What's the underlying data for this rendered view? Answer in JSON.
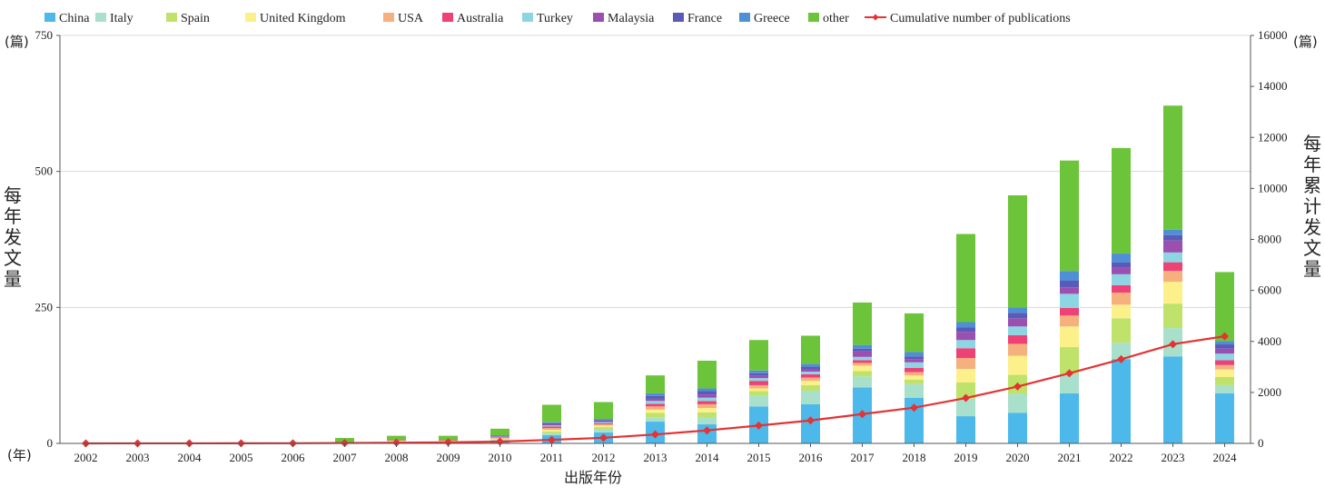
{
  "chart_data": {
    "type": "bar",
    "subtype": "stacked bar with cumulative line (dual axis)",
    "categories": [
      "2002",
      "2003",
      "2004",
      "2005",
      "2006",
      "2007",
      "2008",
      "2009",
      "2010",
      "2011",
      "2012",
      "2013",
      "2014",
      "2015",
      "2016",
      "2017",
      "2018",
      "2019",
      "2020",
      "2021",
      "2022",
      "2023",
      "2024"
    ],
    "xlabel": "出版年份",
    "x_unit": "(年)",
    "ylabel_left": "每年发文量",
    "y_unit_left": "(篇)",
    "ylim_left": [
      0,
      750
    ],
    "yticks_left": [
      0,
      250,
      500,
      750
    ],
    "ylabel_right": "每年累计发文量",
    "y_unit_right": "(篇)",
    "ylim_right": [
      0,
      16000
    ],
    "yticks_right": [
      0,
      2000,
      4000,
      6000,
      8000,
      10000,
      12000,
      14000,
      16000
    ],
    "legend_position": "top",
    "series": [
      {
        "name": "China",
        "color": "#4db8ea",
        "values": [
          0,
          0,
          0,
          0,
          0,
          1,
          2,
          2,
          5,
          15,
          20,
          40,
          35,
          68,
          72,
          103,
          84,
          50,
          56,
          92,
          155,
          160,
          92
        ]
      },
      {
        "name": "Italy",
        "color": "#a8e0cc",
        "values": [
          0,
          0,
          0,
          0,
          0,
          0,
          1,
          1,
          2,
          4,
          6,
          8,
          12,
          20,
          25,
          20,
          25,
          32,
          35,
          35,
          30,
          52,
          15
        ]
      },
      {
        "name": "Spain",
        "color": "#bfe26a",
        "values": [
          0,
          0,
          0,
          0,
          0,
          0,
          1,
          1,
          1,
          3,
          4,
          8,
          10,
          8,
          10,
          10,
          8,
          30,
          35,
          50,
          45,
          45,
          15
        ]
      },
      {
        "name": "United Kingdom",
        "color": "#fbf08a",
        "values": [
          0,
          0,
          0,
          0,
          0,
          0,
          1,
          1,
          1,
          3,
          3,
          6,
          8,
          5,
          8,
          10,
          8,
          25,
          35,
          38,
          25,
          40,
          14
        ]
      },
      {
        "name": "USA",
        "color": "#f5b07e",
        "values": [
          0,
          0,
          0,
          0,
          0,
          0,
          0,
          0,
          1,
          3,
          2,
          6,
          7,
          6,
          6,
          5,
          6,
          20,
          22,
          20,
          22,
          20,
          8
        ]
      },
      {
        "name": "Australia",
        "color": "#ee4277",
        "values": [
          0,
          0,
          0,
          0,
          0,
          0,
          1,
          1,
          1,
          3,
          2,
          5,
          6,
          8,
          6,
          5,
          8,
          18,
          16,
          14,
          14,
          16,
          9
        ]
      },
      {
        "name": "Turkey",
        "color": "#8cd6e4",
        "values": [
          0,
          0,
          0,
          0,
          0,
          0,
          0,
          0,
          1,
          2,
          2,
          5,
          6,
          5,
          5,
          6,
          10,
          15,
          16,
          26,
          20,
          18,
          12
        ]
      },
      {
        "name": "Malaysia",
        "color": "#9b50b0",
        "values": [
          0,
          0,
          0,
          0,
          0,
          0,
          0,
          0,
          1,
          2,
          2,
          4,
          6,
          5,
          5,
          10,
          6,
          15,
          15,
          12,
          12,
          22,
          9
        ]
      },
      {
        "name": "France",
        "color": "#5a5ab8",
        "values": [
          0,
          0,
          0,
          0,
          0,
          0,
          0,
          0,
          1,
          2,
          2,
          5,
          6,
          4,
          4,
          5,
          5,
          8,
          10,
          12,
          10,
          10,
          8
        ]
      },
      {
        "name": "Greece",
        "color": "#4f8fd6",
        "values": [
          0,
          0,
          0,
          0,
          0,
          0,
          0,
          0,
          1,
          2,
          2,
          5,
          5,
          5,
          5,
          7,
          8,
          10,
          10,
          18,
          16,
          10,
          6
        ]
      },
      {
        "name": "other",
        "color": "#6cc43a",
        "values": [
          0,
          0,
          0,
          0,
          0,
          9,
          8,
          8,
          12,
          32,
          31,
          33,
          51,
          56,
          52,
          78,
          71,
          162,
          206,
          203,
          194,
          228,
          127
        ]
      }
    ],
    "cumulative": {
      "name": "Cumulative number of publications",
      "color": "#e53232",
      "values": [
        1,
        2,
        3,
        4,
        6,
        15,
        29,
        43,
        70,
        140,
        220,
        350,
        510,
        700,
        900,
        1150,
        1400,
        1780,
        2230,
        2750,
        3300,
        3890,
        4200
      ]
    }
  }
}
